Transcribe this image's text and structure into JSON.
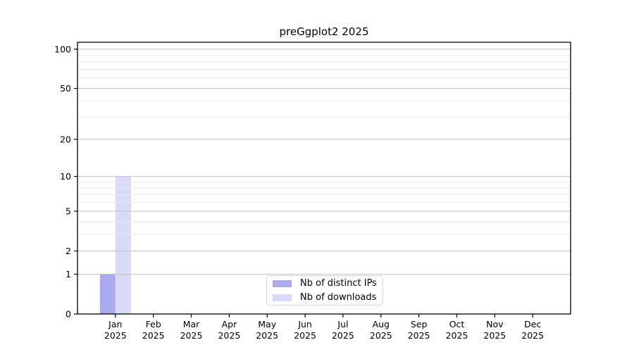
{
  "title": "preGgplot2 2025",
  "colors": {
    "bar_distinct_ips": "#a9a9f0",
    "bar_downloads": "#d9d9f8",
    "grid_major": "#c2c2c2",
    "grid_minor": "#eaeaea",
    "axis": "#000000",
    "tick_label": "#000000",
    "legend_border": "#d5d5d5",
    "background": "#ffffff"
  },
  "chart_data": {
    "type": "bar",
    "title": "preGgplot2 2025",
    "categories": [
      "Jan 2025",
      "Feb 2025",
      "Mar 2025",
      "Apr 2025",
      "May 2025",
      "Jun 2025",
      "Jul 2025",
      "Aug 2025",
      "Sep 2025",
      "Oct 2025",
      "Nov 2025",
      "Dec 2025"
    ],
    "series": [
      {
        "name": "Nb of distinct IPs",
        "color": "#a9a9f0",
        "values": [
          1,
          0,
          0,
          0,
          0,
          0,
          0,
          0,
          0,
          0,
          0,
          0
        ]
      },
      {
        "name": "Nb of downloads",
        "color": "#d9d9f8",
        "values": [
          10,
          0,
          0,
          0,
          0,
          0,
          0,
          0,
          0,
          0,
          0,
          0
        ]
      }
    ],
    "xlabel": "",
    "ylabel": "",
    "yscale": "log1p",
    "ylim": [
      0,
      113
    ],
    "yticks": [
      0,
      1,
      2,
      5,
      10,
      20,
      50,
      100
    ],
    "minor_gridlines": [
      3,
      4,
      6,
      7,
      8,
      9,
      30,
      40,
      60,
      70,
      80,
      90
    ],
    "grid": true,
    "grid_above_bars": true,
    "legend_position": "lower center"
  }
}
